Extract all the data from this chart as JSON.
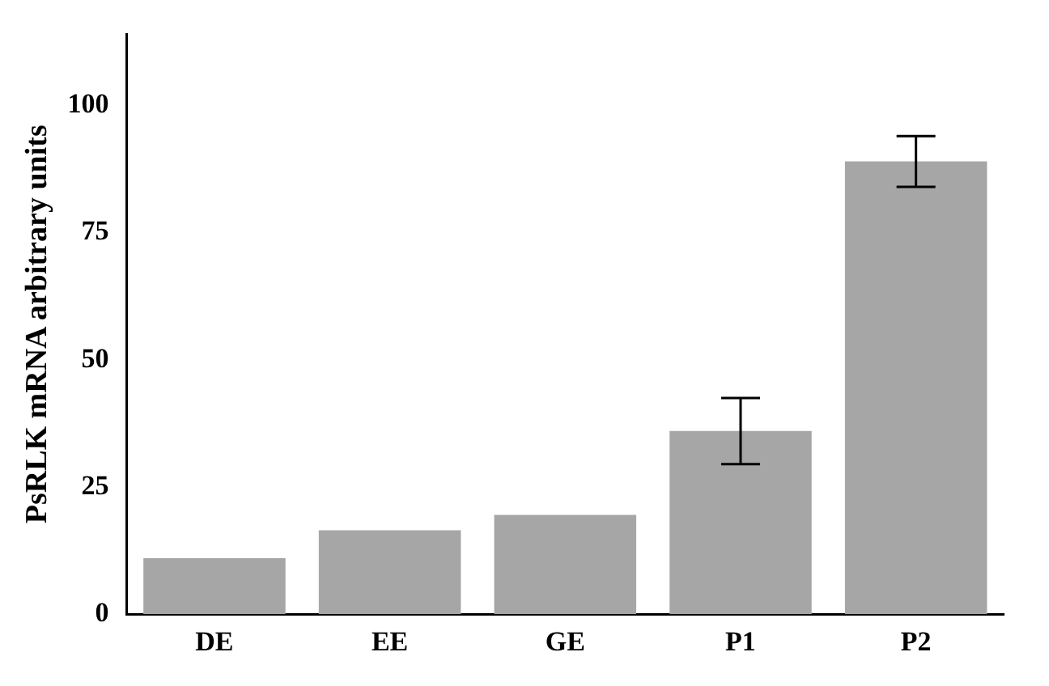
{
  "chart_data": {
    "type": "bar",
    "ylabel": "PsRLK mRNA arbitrary units",
    "categories": [
      "DE",
      "EE",
      "GE",
      "P1",
      "P2"
    ],
    "values": [
      11,
      16.5,
      19.5,
      36,
      89
    ],
    "errors": [
      null,
      null,
      null,
      6.5,
      5
    ],
    "color": "#a6a6a6",
    "ylim": [
      0,
      114
    ],
    "yticks": [
      0,
      25,
      50,
      75,
      100
    ],
    "grid": false,
    "legend": false
  }
}
